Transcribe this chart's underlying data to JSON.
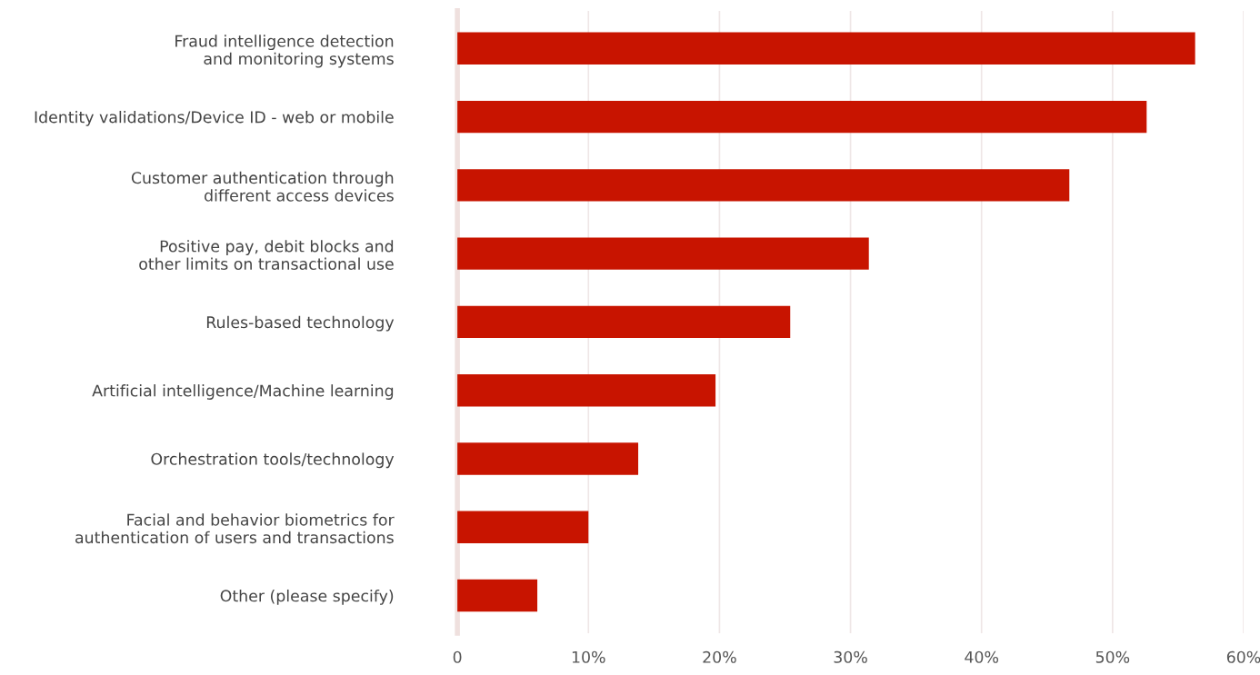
{
  "chart_data": {
    "type": "bar",
    "orientation": "horizontal",
    "categories": [
      "Fraud intelligence detection\nand monitoring systems",
      "Identity validations/Device ID - web or mobile",
      "Customer authentication through\ndifferent access devices",
      "Positive pay, debit blocks and\nother limits on transactional use",
      "Rules-based technology",
      "Artificial intelligence/Machine learning",
      "Orchestration tools/technology",
      "Facial and behavior biometrics for\nauthentication of users and transactions",
      "Other (please specify)"
    ],
    "values": [
      56.3,
      52.6,
      46.7,
      31.4,
      25.4,
      19.7,
      13.8,
      10.0,
      6.1
    ],
    "color": "#c81400",
    "xlim": [
      0,
      60
    ],
    "xticks": [
      0,
      {
        "value": 10,
        "label": "10%"
      },
      {
        "value": 20,
        "label": "20%"
      },
      {
        "value": 30,
        "label": "30%"
      },
      {
        "value": 40,
        "label": "40%"
      },
      {
        "value": 50,
        "label": "50%"
      },
      {
        "value": 60,
        "label": "60%"
      }
    ],
    "grid": "x"
  }
}
